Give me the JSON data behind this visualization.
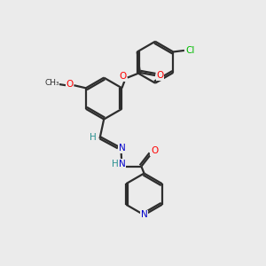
{
  "background_color": "#ebebeb",
  "bond_color": "#2d2d2d",
  "atom_colors": {
    "O": "#ff0000",
    "N": "#0000cc",
    "Cl": "#00bb00",
    "C": "#2d2d2d",
    "H": "#2a9090"
  },
  "figsize": [
    3.0,
    3.0
  ],
  "dpi": 100
}
